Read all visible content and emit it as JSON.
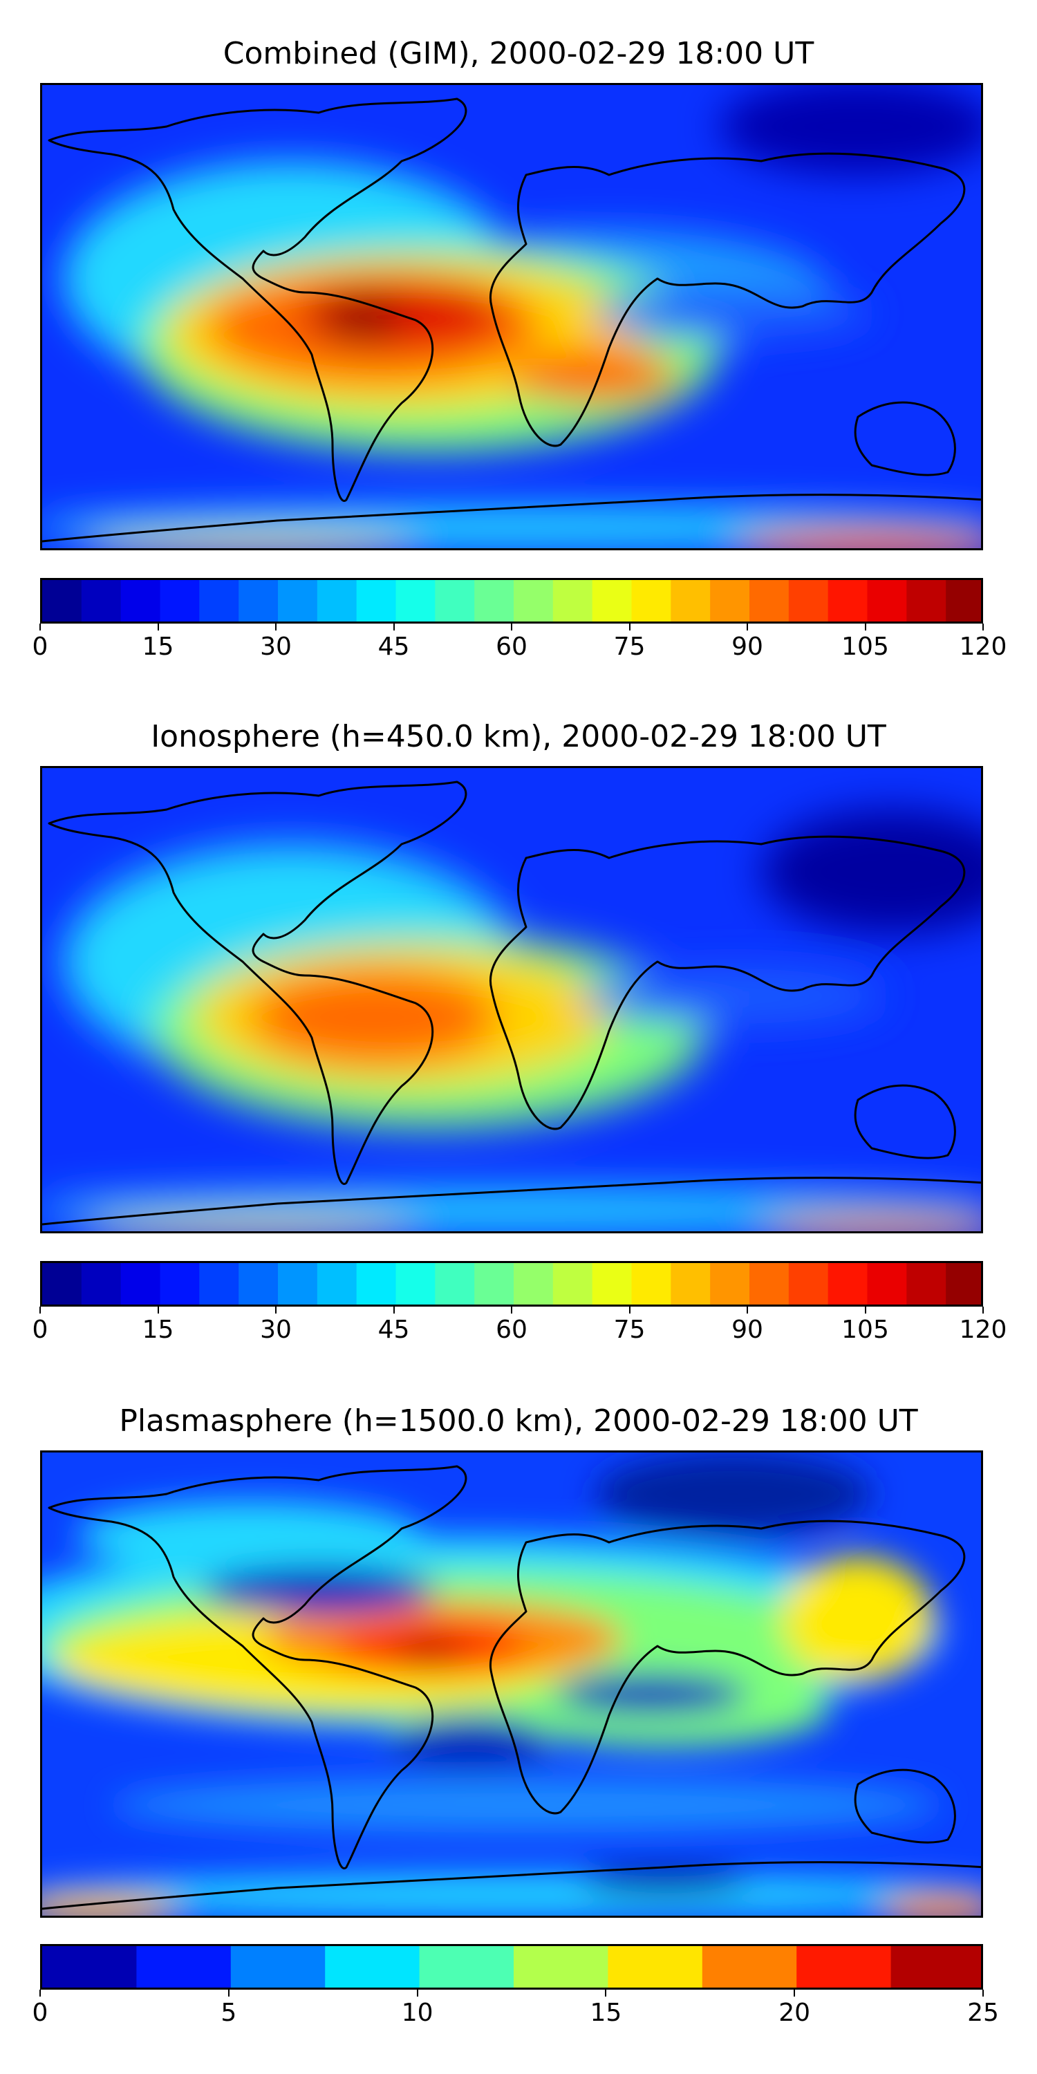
{
  "panels": [
    {
      "title": "Combined (GIM), 2000-02-29 18:00 UT",
      "colorbar": {
        "min": 0,
        "max": 120,
        "step": 5,
        "ticks": [
          "0",
          "15",
          "30",
          "45",
          "60",
          "75",
          "90",
          "105",
          "120"
        ]
      }
    },
    {
      "title": "Ionosphere  (h=450.0 km), 2000-02-29 18:00 UT",
      "colorbar": {
        "min": 0,
        "max": 120,
        "step": 5,
        "ticks": [
          "0",
          "15",
          "30",
          "45",
          "60",
          "75",
          "90",
          "105",
          "120"
        ]
      }
    },
    {
      "title": "Plasmasphere (h=1500.0 km), 2000-02-29 18:00 UT",
      "colorbar": {
        "min": 0,
        "max": 25,
        "step": 2.5,
        "ticks": [
          "0",
          "5",
          "10",
          "15",
          "20",
          "25"
        ]
      }
    }
  ],
  "colormap": "jet",
  "colors": {
    "coastline": "#000000",
    "background": "#ffffff"
  }
}
